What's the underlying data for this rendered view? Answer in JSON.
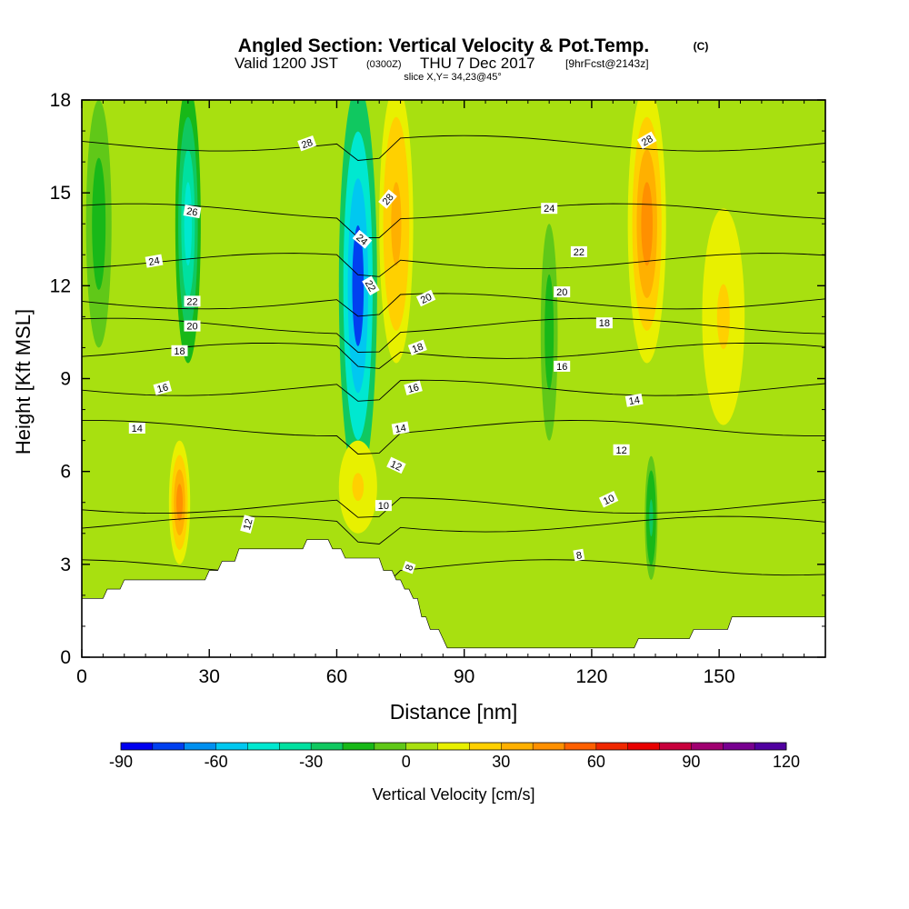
{
  "header": {
    "title_main": "Angled Section: Vertical Velocity & Pot.Temp.",
    "title_tag": "(C)",
    "valid_prefix": "Valid 1200 JST",
    "valid_utc": "(0300Z)",
    "valid_date": "THU 7 Dec 2017",
    "forecast_tag": "[9hrFcst@2143z]",
    "slice_line": "slice X,Y= 34,23@45°"
  },
  "chart_data": {
    "type": "heatmap",
    "title": "Angled Section: Vertical Velocity & Pot.Temp.",
    "xlabel": "Distance [nm]",
    "ylabel": "Height [Kft MSL]",
    "xlim": [
      0,
      175
    ],
    "ylim": [
      0,
      18
    ],
    "x_ticks": [
      0,
      30,
      60,
      90,
      120,
      150
    ],
    "y_ticks": [
      0,
      3,
      6,
      9,
      12,
      15,
      18
    ],
    "grid": false,
    "colorbar": {
      "label": "Vertical Velocity [cm/s]",
      "ticks": [
        -90,
        -60,
        -30,
        0,
        30,
        60,
        90,
        120
      ],
      "range": [
        -90,
        120
      ],
      "colors": [
        "#0000f0",
        "#0040f0",
        "#0090f0",
        "#00c8f0",
        "#00e8d0",
        "#00e0a0",
        "#10c860",
        "#18b818",
        "#60c818",
        "#a8e010",
        "#e8f000",
        "#ffd000",
        "#ffb000",
        "#ff9000",
        "#ff6000",
        "#f02800",
        "#e80000",
        "#c8003c",
        "#a00070",
        "#780090",
        "#5000a0"
      ]
    },
    "terrain": [
      [
        0,
        1.9
      ],
      [
        5,
        1.9
      ],
      [
        6,
        2.2
      ],
      [
        9,
        2.2
      ],
      [
        10,
        2.5
      ],
      [
        29,
        2.5
      ],
      [
        30,
        2.8
      ],
      [
        32,
        2.8
      ],
      [
        33,
        3.1
      ],
      [
        36,
        3.1
      ],
      [
        37,
        3.5
      ],
      [
        52,
        3.5
      ],
      [
        53,
        3.8
      ],
      [
        58,
        3.8
      ],
      [
        59,
        3.5
      ],
      [
        61,
        3.5
      ],
      [
        62,
        3.2
      ],
      [
        70,
        3.2
      ],
      [
        71,
        2.8
      ],
      [
        73,
        2.8
      ],
      [
        74,
        2.5
      ],
      [
        75,
        2.5
      ],
      [
        76,
        2.2
      ],
      [
        77,
        2.2
      ],
      [
        78,
        1.9
      ],
      [
        79,
        1.9
      ],
      [
        80,
        1.3
      ],
      [
        81,
        1.3
      ],
      [
        82,
        0.9
      ],
      [
        84,
        0.9
      ],
      [
        86,
        0.3
      ],
      [
        130,
        0.3
      ],
      [
        131,
        0.6
      ],
      [
        143,
        0.6
      ],
      [
        144,
        0.9
      ],
      [
        152,
        0.9
      ],
      [
        153,
        1.3
      ],
      [
        175,
        1.3
      ]
    ],
    "theta_isolines": [
      {
        "value": 8,
        "label_at": [
          77,
          2.9
        ]
      },
      {
        "value": 10,
        "label_at": [
          71,
          4.9
        ]
      },
      {
        "value": 12,
        "label_at": [
          39,
          4.3
        ]
      },
      {
        "value": 14,
        "label_at": [
          13,
          7.4
        ]
      },
      {
        "value": 16,
        "label_at": [
          19,
          8.7
        ]
      },
      {
        "value": 18,
        "label_at": [
          23,
          9.9
        ]
      },
      {
        "value": 20,
        "label_at": [
          26,
          10.7
        ]
      },
      {
        "value": 22,
        "label_at": [
          26,
          11.5
        ]
      },
      {
        "value": 24,
        "label_at": [
          17,
          12.8
        ]
      },
      {
        "value": 26,
        "label_at": [
          26,
          14.4
        ]
      },
      {
        "value": 28,
        "label_at": [
          53,
          16.6
        ]
      }
    ],
    "contour_labels": [
      {
        "text": "28",
        "x": 53,
        "y": 16.6,
        "rot": -20
      },
      {
        "text": "26",
        "x": 26,
        "y": 14.4,
        "rot": 10
      },
      {
        "text": "24",
        "x": 17,
        "y": 12.8,
        "rot": -10
      },
      {
        "text": "22",
        "x": 26,
        "y": 11.5,
        "rot": 0
      },
      {
        "text": "20",
        "x": 26,
        "y": 10.7,
        "rot": 0
      },
      {
        "text": "18",
        "x": 23,
        "y": 9.9,
        "rot": 0
      },
      {
        "text": "16",
        "x": 19,
        "y": 8.7,
        "rot": -15
      },
      {
        "text": "14",
        "x": 13,
        "y": 7.4,
        "rot": 0
      },
      {
        "text": "12",
        "x": 39,
        "y": 4.3,
        "rot": -75
      },
      {
        "text": "28",
        "x": 72,
        "y": 14.8,
        "rot": -50
      },
      {
        "text": "24",
        "x": 66,
        "y": 13.5,
        "rot": 40
      },
      {
        "text": "22",
        "x": 68,
        "y": 12.0,
        "rot": 60
      },
      {
        "text": "20",
        "x": 81,
        "y": 11.6,
        "rot": -25
      },
      {
        "text": "18",
        "x": 79,
        "y": 10.0,
        "rot": -20
      },
      {
        "text": "16",
        "x": 78,
        "y": 8.7,
        "rot": -15
      },
      {
        "text": "14",
        "x": 75,
        "y": 7.4,
        "rot": -10
      },
      {
        "text": "12",
        "x": 74,
        "y": 6.2,
        "rot": 25
      },
      {
        "text": "10",
        "x": 71,
        "y": 4.9,
        "rot": 0
      },
      {
        "text": "8",
        "x": 77,
        "y": 2.9,
        "rot": -70
      },
      {
        "text": "28",
        "x": 133,
        "y": 16.7,
        "rot": -30
      },
      {
        "text": "24",
        "x": 110,
        "y": 14.5,
        "rot": 0
      },
      {
        "text": "22",
        "x": 117,
        "y": 13.1,
        "rot": 0
      },
      {
        "text": "20",
        "x": 113,
        "y": 11.8,
        "rot": 0
      },
      {
        "text": "18",
        "x": 123,
        "y": 10.8,
        "rot": 0
      },
      {
        "text": "16",
        "x": 113,
        "y": 9.4,
        "rot": 0
      },
      {
        "text": "14",
        "x": 130,
        "y": 8.3,
        "rot": -10
      },
      {
        "text": "12",
        "x": 127,
        "y": 6.7,
        "rot": 0
      },
      {
        "text": "10",
        "x": 124,
        "y": 5.1,
        "rot": -25
      },
      {
        "text": "8",
        "x": 117,
        "y": 3.3,
        "rot": -10
      }
    ],
    "velocity_features": [
      {
        "kind": "downdraft",
        "x": 25,
        "y": 14,
        "w": 6,
        "h": 9,
        "value": -45
      },
      {
        "kind": "downdraft",
        "x": 65,
        "y": 12,
        "w": 9,
        "h": 13,
        "value": -75
      },
      {
        "kind": "updraft",
        "x": 74,
        "y": 14,
        "w": 8,
        "h": 9,
        "value": 35
      },
      {
        "kind": "updraft",
        "x": 133,
        "y": 14,
        "w": 9,
        "h": 9,
        "value": 40
      },
      {
        "kind": "updraft",
        "x": 151,
        "y": 11,
        "w": 10,
        "h": 7,
        "value": 20
      },
      {
        "kind": "updraft",
        "x": 23,
        "y": 5,
        "w": 5,
        "h": 4,
        "value": 45
      },
      {
        "kind": "updraft",
        "x": 65,
        "y": 5.5,
        "w": 9,
        "h": 3,
        "value": 20
      },
      {
        "kind": "downdraft",
        "x": 110,
        "y": 10.5,
        "w": 4,
        "h": 7,
        "value": -20
      },
      {
        "kind": "downdraft",
        "x": 4,
        "y": 14,
        "w": 6,
        "h": 8,
        "value": -20
      },
      {
        "kind": "downdraft",
        "x": 134,
        "y": 4.5,
        "w": 3,
        "h": 4,
        "value": -25
      }
    ]
  }
}
